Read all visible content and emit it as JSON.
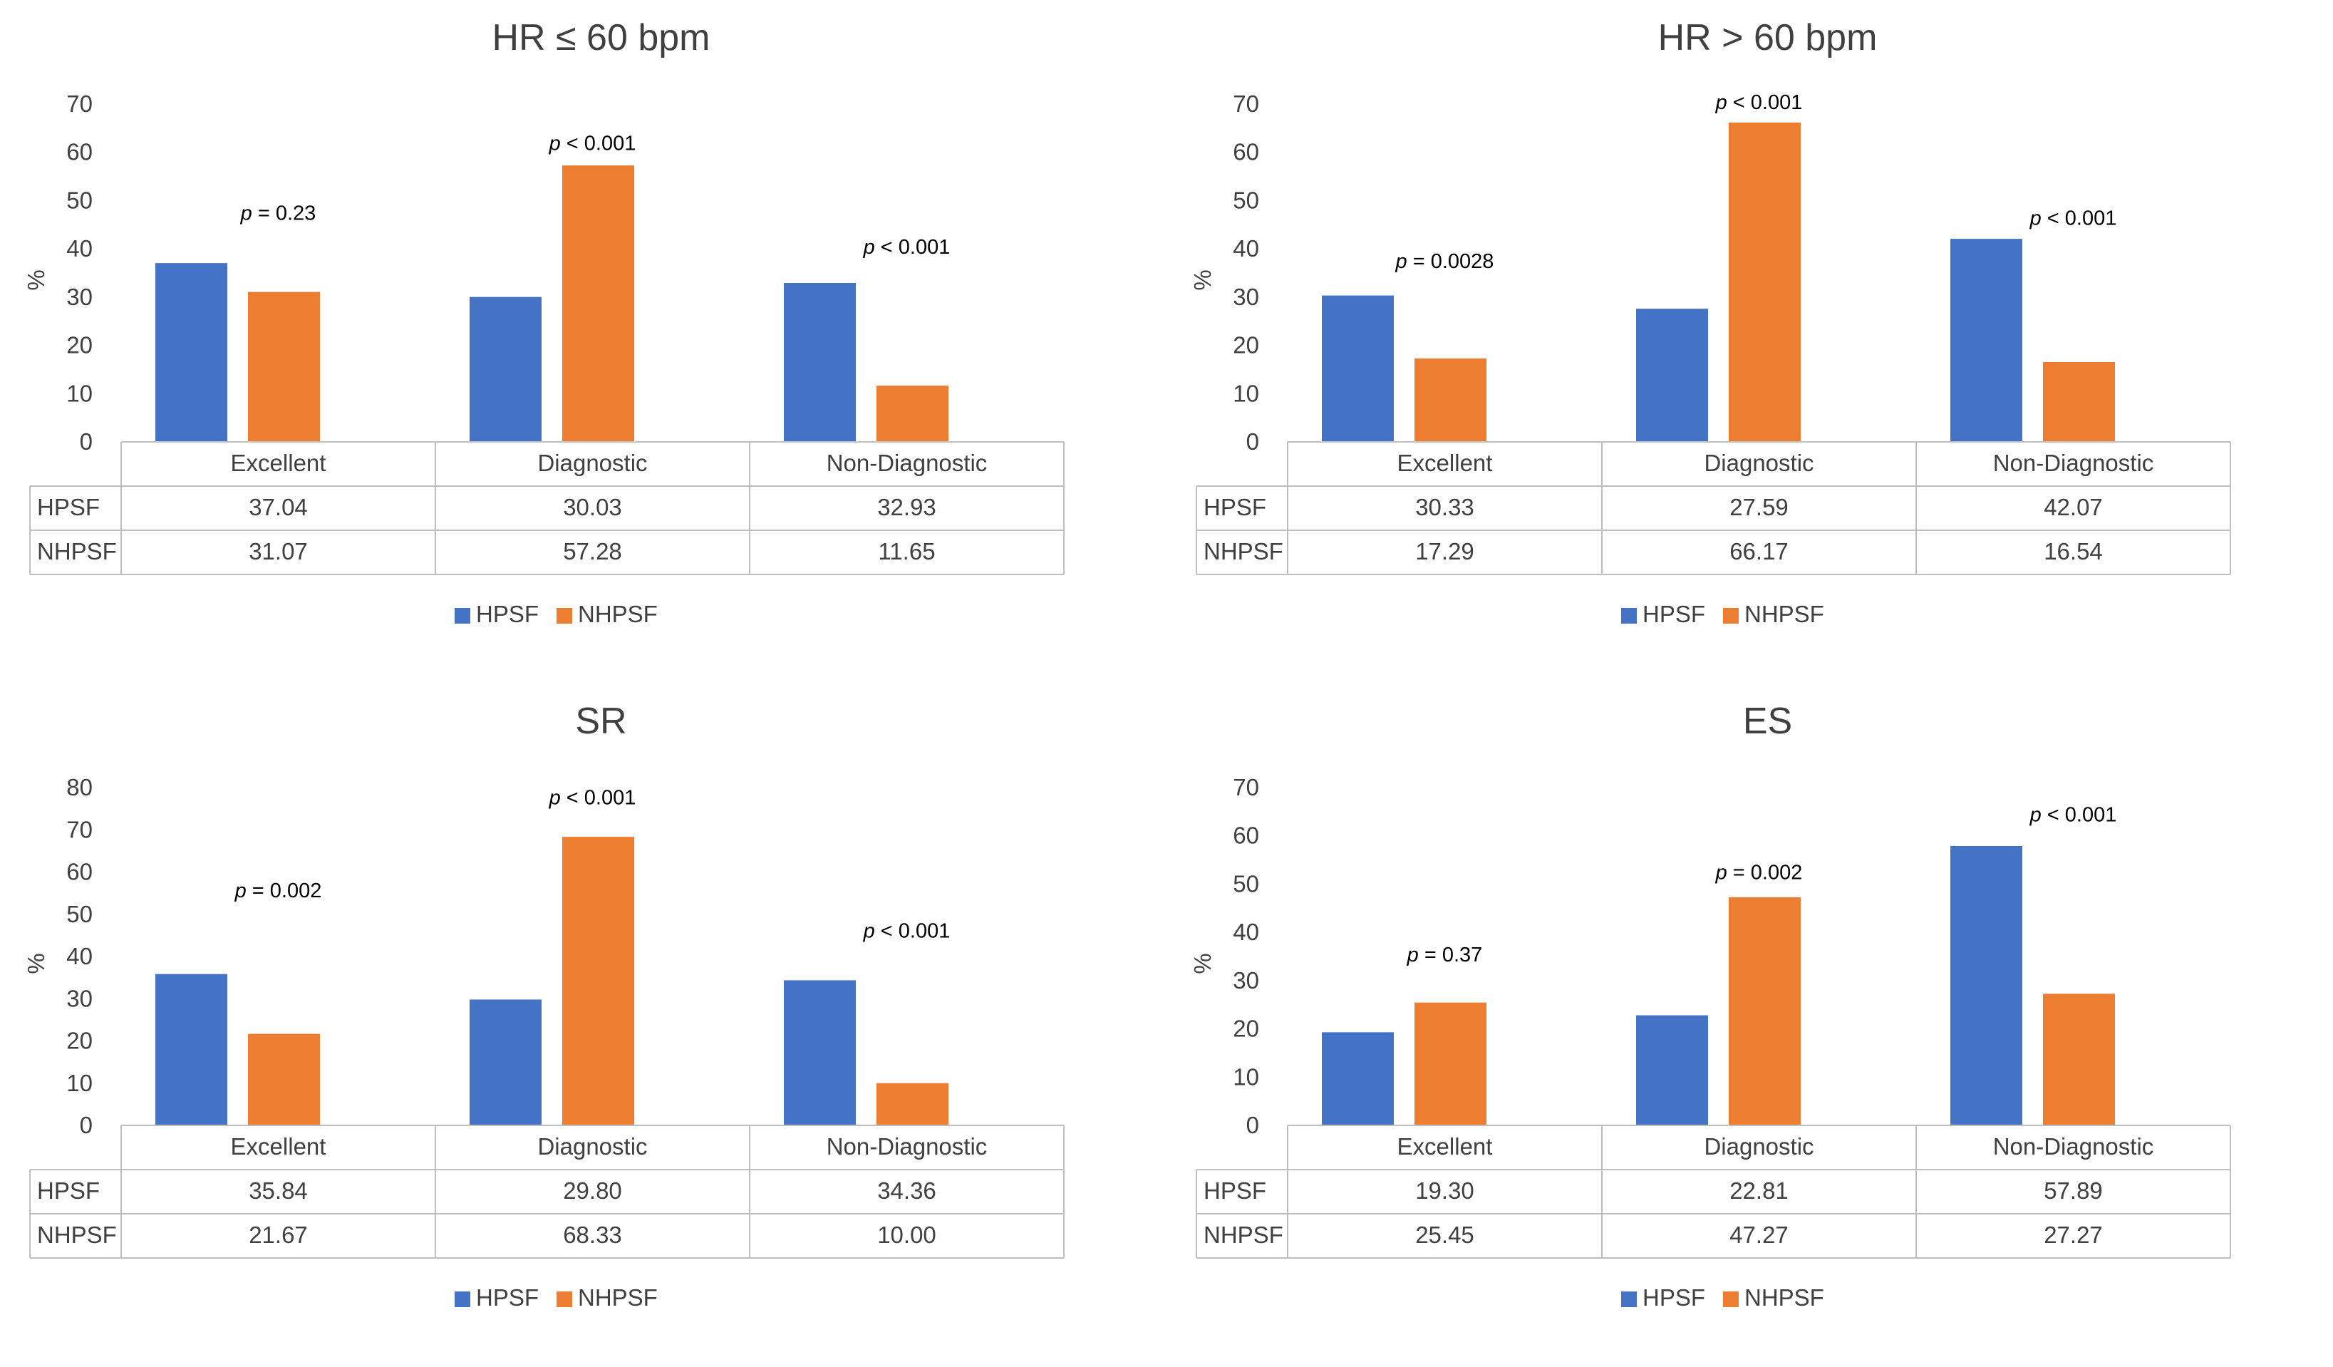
{
  "colors": {
    "HPSF": "#4472C4",
    "NHPSF": "#ED7D31",
    "grid": "#BFBFBF",
    "text": "#404040"
  },
  "chart_data": [
    {
      "type": "bar",
      "title": "HR ≤ 60 bpm",
      "ylabel": "%",
      "xlabel": "",
      "ylim": [
        0,
        70
      ],
      "yticks": [
        0,
        10,
        20,
        30,
        40,
        50,
        60,
        70
      ],
      "categories": [
        "Excellent",
        "Diagnostic",
        "Non-Diagnostic"
      ],
      "series": [
        {
          "name": "HPSF",
          "values": [
            37.04,
            30.03,
            32.93
          ],
          "labels": [
            "37.04",
            "30.03",
            "32.93"
          ]
        },
        {
          "name": "NHPSF",
          "values": [
            31.07,
            57.28,
            11.65
          ],
          "labels": [
            "31.07",
            "57.28",
            "11.65"
          ]
        }
      ],
      "annotations": [
        {
          "p": "p",
          "rest": " = 0.23",
          "y": 46
        },
        {
          "p": "p",
          "rest": " < 0.001",
          "y": 60.5
        },
        {
          "p": "p",
          "rest": " < 0.001",
          "y": 39
        }
      ],
      "legend_position": "bottom",
      "data_table": true
    },
    {
      "type": "bar",
      "title": "HR > 60 bpm",
      "ylabel": "%",
      "xlabel": "",
      "ylim": [
        0,
        70
      ],
      "yticks": [
        0,
        10,
        20,
        30,
        40,
        50,
        60,
        70
      ],
      "categories": [
        "Excellent",
        "Diagnostic",
        "Non-Diagnostic"
      ],
      "series": [
        {
          "name": "HPSF",
          "values": [
            30.33,
            27.59,
            42.07
          ],
          "labels": [
            "30.33",
            "27.59",
            "42.07"
          ]
        },
        {
          "name": "NHPSF",
          "values": [
            17.29,
            66.17,
            16.54
          ],
          "labels": [
            "17.29",
            "66.17",
            "16.54"
          ]
        }
      ],
      "annotations": [
        {
          "p": "p",
          "rest": " = 0.0028",
          "y": 36
        },
        {
          "p": "p",
          "rest": " < 0.001",
          "y": 69
        },
        {
          "p": "p",
          "rest": " < 0.001",
          "y": 45
        }
      ],
      "legend_position": "bottom",
      "data_table": true
    },
    {
      "type": "bar",
      "title": "SR",
      "ylabel": "%",
      "xlabel": "",
      "ylim": [
        0,
        80
      ],
      "yticks": [
        0,
        10,
        20,
        30,
        40,
        50,
        60,
        70,
        80
      ],
      "categories": [
        "Excellent",
        "Diagnostic",
        "Non-Diagnostic"
      ],
      "series": [
        {
          "name": "HPSF",
          "values": [
            35.84,
            29.8,
            34.36
          ],
          "labels": [
            "35.84",
            "29.80",
            "34.36"
          ]
        },
        {
          "name": "NHPSF",
          "values": [
            21.67,
            68.33,
            10.0
          ],
          "labels": [
            "21.67",
            "68.33",
            "10.00"
          ]
        }
      ],
      "annotations": [
        {
          "p": "p",
          "rest": " = 0.002",
          "y": 54
        },
        {
          "p": "p",
          "rest": " < 0.001",
          "y": 76
        },
        {
          "p": "p",
          "rest": " < 0.001",
          "y": 44.5
        }
      ],
      "legend_position": "bottom",
      "data_table": true
    },
    {
      "type": "bar",
      "title": "ES",
      "ylabel": "%",
      "xlabel": "",
      "ylim": [
        0,
        70
      ],
      "yticks": [
        0,
        10,
        20,
        30,
        40,
        50,
        60,
        70
      ],
      "categories": [
        "Excellent",
        "Diagnostic",
        "Non-Diagnostic"
      ],
      "series": [
        {
          "name": "HPSF",
          "values": [
            19.3,
            22.81,
            57.89
          ],
          "labels": [
            "19.30",
            "22.81",
            "57.89"
          ]
        },
        {
          "name": "NHPSF",
          "values": [
            25.45,
            47.27,
            27.27
          ],
          "labels": [
            "25.45",
            "47.27",
            "27.27"
          ]
        }
      ],
      "annotations": [
        {
          "p": "p",
          "rest": " = 0.37",
          "y": 34
        },
        {
          "p": "p",
          "rest": " = 0.002",
          "y": 51
        },
        {
          "p": "p",
          "rest": " < 0.001",
          "y": 63
        }
      ],
      "legend_position": "bottom",
      "data_table": true
    }
  ]
}
